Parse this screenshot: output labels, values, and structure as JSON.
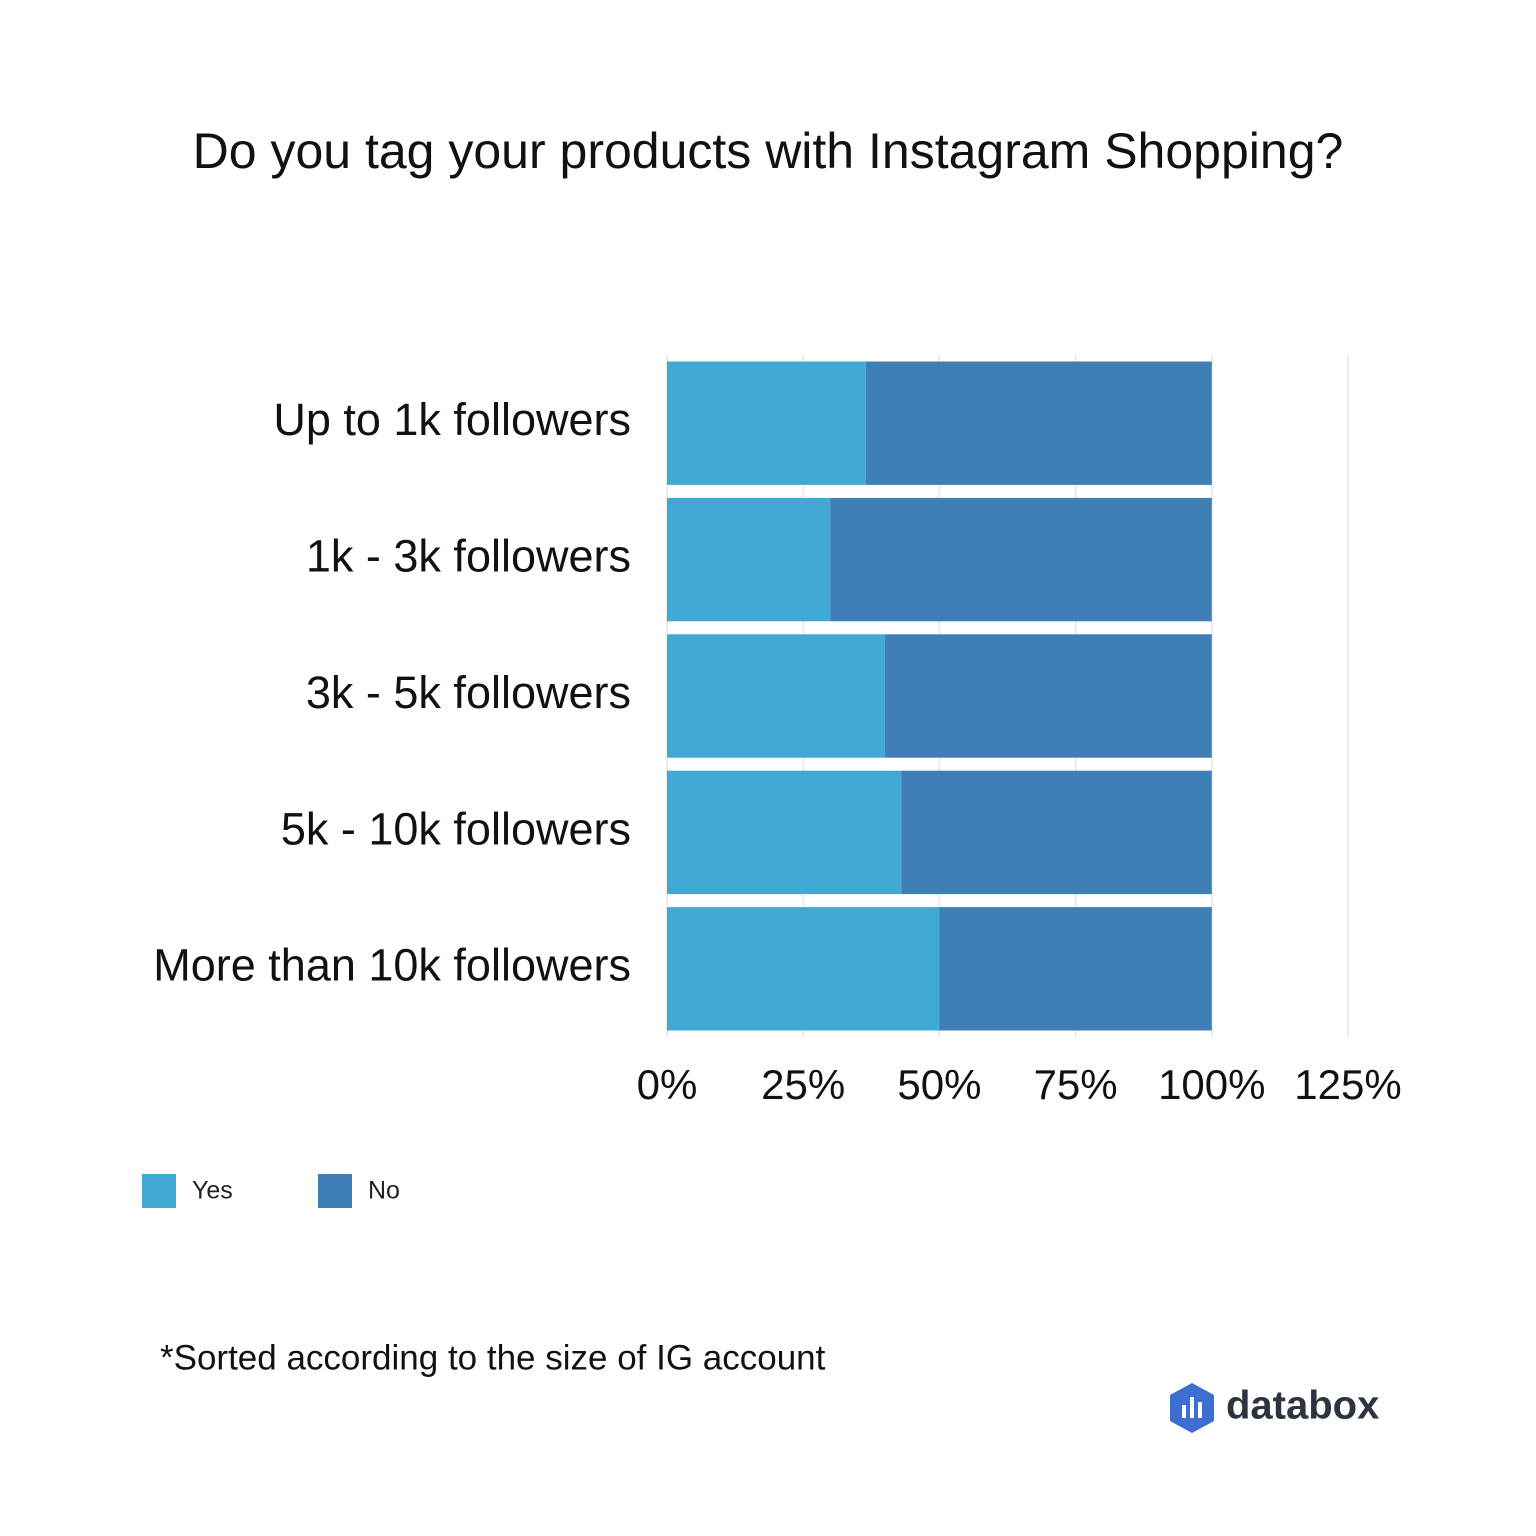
{
  "chart_data": {
    "type": "stacked_barh",
    "title": "Do you tag your products with Instagram Shopping?",
    "categories": [
      "Up to 1k followers",
      "1k - 3k followers",
      "3k - 5k followers",
      "5k - 10k followers",
      "More than 10k followers"
    ],
    "series": [
      {
        "name": "Yes",
        "color": "#42a9d4",
        "values": [
          36.5,
          30,
          40,
          43,
          50
        ]
      },
      {
        "name": "No",
        "color": "#3f7fb5",
        "values": [
          63.5,
          70,
          60,
          57,
          50
        ]
      }
    ],
    "xlim": [
      0,
      125
    ],
    "xticks": [
      {
        "value": 0,
        "label": "0%"
      },
      {
        "value": 25,
        "label": "25%"
      },
      {
        "value": 50,
        "label": "50%"
      },
      {
        "value": 75,
        "label": "75%"
      },
      {
        "value": 100,
        "label": "100%"
      },
      {
        "value": 125,
        "label": "125%"
      }
    ],
    "grid": true,
    "legend": "bottom-left",
    "footnote": "*Sorted according to the size of IG account",
    "logo_text": "databox"
  }
}
